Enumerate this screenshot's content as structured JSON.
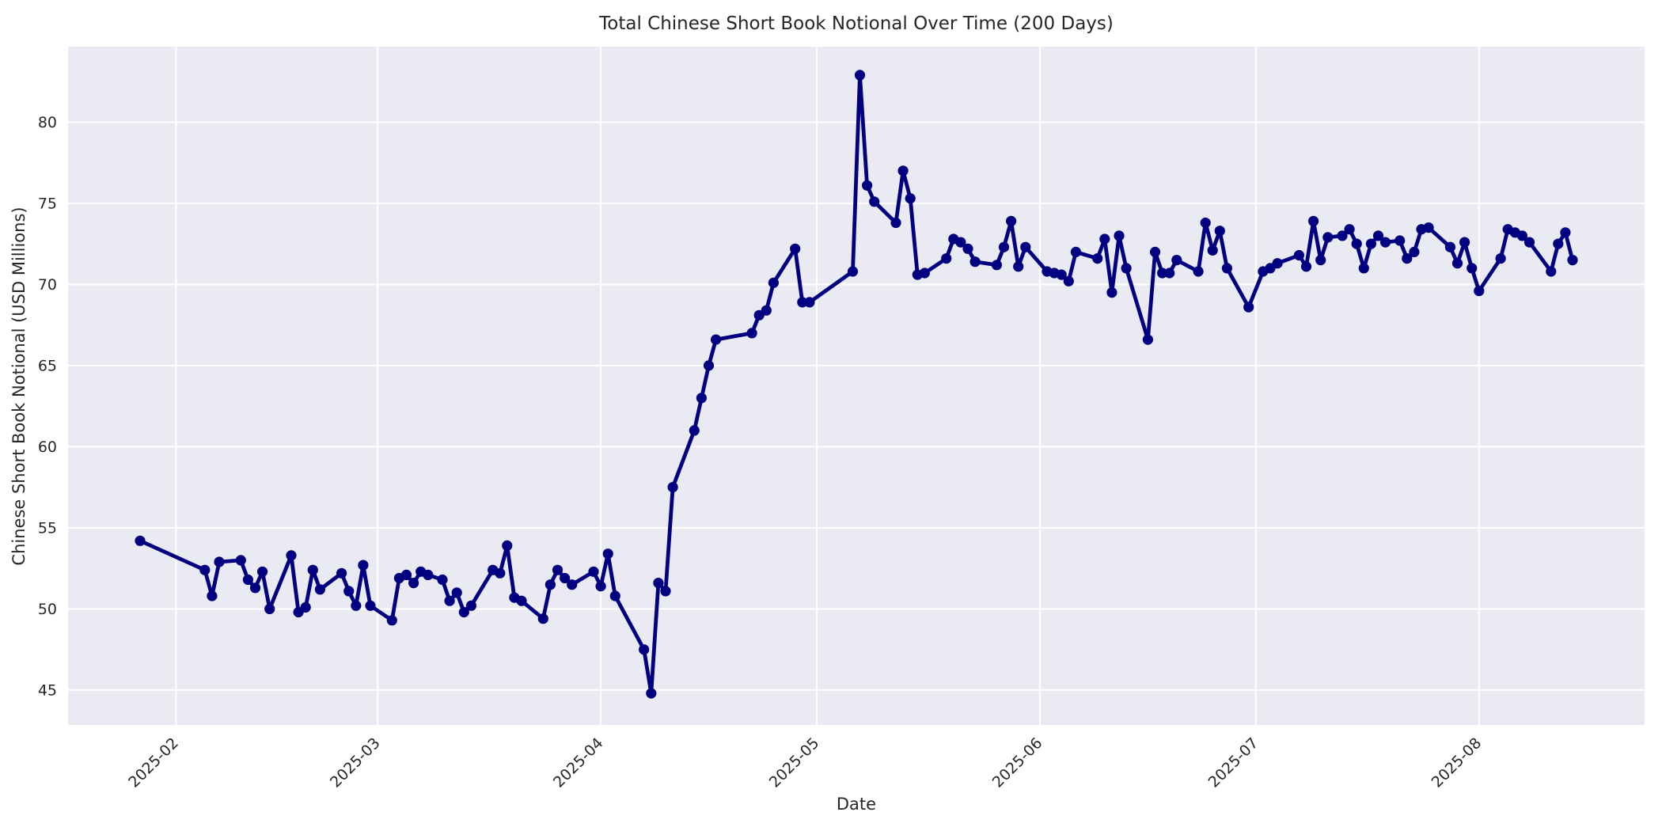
{
  "figure": {
    "title": "Total Chinese Short Book Notional Over Time (200 Days)",
    "xlabel": "Date",
    "ylabel": "Chinese Short Book Notional (USD Millions)"
  },
  "chart_data": {
    "type": "line",
    "title": "Total Chinese Short Book Notional Over Time (200 Days)",
    "xlabel": "Date",
    "ylabel": "Chinese Short Book Notional (USD Millions)",
    "grid": true,
    "legend": "none",
    "line_color": "#000080",
    "marker": "circle",
    "plot_bg": "#EAEAF2",
    "fig_bg": "#FFFFFF",
    "grid_color": "#FFFFFF",
    "text_color": "#262626",
    "xlim": [
      "2025-01-17",
      "2025-08-24"
    ],
    "ylim": [
      42.85,
      84.65
    ],
    "y_ticks": [
      45,
      50,
      55,
      60,
      65,
      70,
      75,
      80
    ],
    "x_ticks": [
      {
        "date": "2025-02-01",
        "label": "2025-02"
      },
      {
        "date": "2025-03-01",
        "label": "2025-03"
      },
      {
        "date": "2025-04-01",
        "label": "2025-04"
      },
      {
        "date": "2025-05-01",
        "label": "2025-05"
      },
      {
        "date": "2025-06-01",
        "label": "2025-06"
      },
      {
        "date": "2025-07-01",
        "label": "2025-07"
      },
      {
        "date": "2025-08-01",
        "label": "2025-08"
      }
    ],
    "series": [
      {
        "name": "Total Chinese Short Book Notional",
        "points": [
          [
            "2025-01-27",
            54.2
          ],
          [
            "2025-02-05",
            52.4
          ],
          [
            "2025-02-06",
            50.8
          ],
          [
            "2025-02-07",
            52.9
          ],
          [
            "2025-02-10",
            53.0
          ],
          [
            "2025-02-11",
            51.8
          ],
          [
            "2025-02-12",
            51.3
          ],
          [
            "2025-02-13",
            52.3
          ],
          [
            "2025-02-14",
            50.0
          ],
          [
            "2025-02-17",
            53.3
          ],
          [
            "2025-02-18",
            49.8
          ],
          [
            "2025-02-19",
            50.1
          ],
          [
            "2025-02-20",
            52.4
          ],
          [
            "2025-02-21",
            51.2
          ],
          [
            "2025-02-24",
            52.2
          ],
          [
            "2025-02-25",
            51.1
          ],
          [
            "2025-02-26",
            50.2
          ],
          [
            "2025-02-27",
            52.7
          ],
          [
            "2025-02-28",
            50.2
          ],
          [
            "2025-03-03",
            49.3
          ],
          [
            "2025-03-04",
            51.9
          ],
          [
            "2025-03-05",
            52.1
          ],
          [
            "2025-03-06",
            51.6
          ],
          [
            "2025-03-07",
            52.3
          ],
          [
            "2025-03-08",
            52.1
          ],
          [
            "2025-03-10",
            51.8
          ],
          [
            "2025-03-11",
            50.5
          ],
          [
            "2025-03-12",
            51.0
          ],
          [
            "2025-03-13",
            49.8
          ],
          [
            "2025-03-14",
            50.2
          ],
          [
            "2025-03-17",
            52.4
          ],
          [
            "2025-03-18",
            52.2
          ],
          [
            "2025-03-19",
            53.9
          ],
          [
            "2025-03-20",
            50.7
          ],
          [
            "2025-03-21",
            50.5
          ],
          [
            "2025-03-24",
            49.4
          ],
          [
            "2025-03-25",
            51.5
          ],
          [
            "2025-03-26",
            52.4
          ],
          [
            "2025-03-27",
            51.9
          ],
          [
            "2025-03-28",
            51.5
          ],
          [
            "2025-03-31",
            52.3
          ],
          [
            "2025-04-01",
            51.4
          ],
          [
            "2025-04-02",
            53.4
          ],
          [
            "2025-04-03",
            50.8
          ],
          [
            "2025-04-07",
            47.5
          ],
          [
            "2025-04-08",
            44.8
          ],
          [
            "2025-04-09",
            51.6
          ],
          [
            "2025-04-10",
            51.1
          ],
          [
            "2025-04-11",
            57.5
          ],
          [
            "2025-04-14",
            61.0
          ],
          [
            "2025-04-15",
            63.0
          ],
          [
            "2025-04-16",
            65.0
          ],
          [
            "2025-04-17",
            66.6
          ],
          [
            "2025-04-22",
            67.0
          ],
          [
            "2025-04-23",
            68.1
          ],
          [
            "2025-04-24",
            68.4
          ],
          [
            "2025-04-25",
            70.1
          ],
          [
            "2025-04-28",
            72.2
          ],
          [
            "2025-04-29",
            68.9
          ],
          [
            "2025-04-30",
            68.9
          ],
          [
            "2025-05-06",
            70.8
          ],
          [
            "2025-05-07",
            82.9
          ],
          [
            "2025-05-08",
            76.1
          ],
          [
            "2025-05-09",
            75.1
          ],
          [
            "2025-05-12",
            73.8
          ],
          [
            "2025-05-13",
            77.0
          ],
          [
            "2025-05-14",
            75.3
          ],
          [
            "2025-05-15",
            70.6
          ],
          [
            "2025-05-16",
            70.7
          ],
          [
            "2025-05-19",
            71.6
          ],
          [
            "2025-05-20",
            72.8
          ],
          [
            "2025-05-21",
            72.6
          ],
          [
            "2025-05-22",
            72.2
          ],
          [
            "2025-05-23",
            71.4
          ],
          [
            "2025-05-26",
            71.2
          ],
          [
            "2025-05-27",
            72.3
          ],
          [
            "2025-05-28",
            73.9
          ],
          [
            "2025-05-29",
            71.1
          ],
          [
            "2025-05-30",
            72.3
          ],
          [
            "2025-06-02",
            70.8
          ],
          [
            "2025-06-03",
            70.7
          ],
          [
            "2025-06-04",
            70.6
          ],
          [
            "2025-06-05",
            70.2
          ],
          [
            "2025-06-06",
            72.0
          ],
          [
            "2025-06-09",
            71.6
          ],
          [
            "2025-06-10",
            72.8
          ],
          [
            "2025-06-11",
            69.5
          ],
          [
            "2025-06-12",
            73.0
          ],
          [
            "2025-06-13",
            71.0
          ],
          [
            "2025-06-16",
            66.6
          ],
          [
            "2025-06-17",
            72.0
          ],
          [
            "2025-06-18",
            70.7
          ],
          [
            "2025-06-19",
            70.7
          ],
          [
            "2025-06-20",
            71.5
          ],
          [
            "2025-06-23",
            70.8
          ],
          [
            "2025-06-24",
            73.8
          ],
          [
            "2025-06-25",
            72.1
          ],
          [
            "2025-06-26",
            73.3
          ],
          [
            "2025-06-27",
            71.0
          ],
          [
            "2025-06-30",
            68.6
          ],
          [
            "2025-07-02",
            70.8
          ],
          [
            "2025-07-03",
            71.0
          ],
          [
            "2025-07-04",
            71.3
          ],
          [
            "2025-07-07",
            71.8
          ],
          [
            "2025-07-08",
            71.1
          ],
          [
            "2025-07-09",
            73.9
          ],
          [
            "2025-07-10",
            71.5
          ],
          [
            "2025-07-11",
            72.9
          ],
          [
            "2025-07-13",
            73.0
          ],
          [
            "2025-07-14",
            73.4
          ],
          [
            "2025-07-15",
            72.5
          ],
          [
            "2025-07-16",
            71.0
          ],
          [
            "2025-07-17",
            72.5
          ],
          [
            "2025-07-18",
            73.0
          ],
          [
            "2025-07-19",
            72.6
          ],
          [
            "2025-07-21",
            72.7
          ],
          [
            "2025-07-22",
            71.6
          ],
          [
            "2025-07-23",
            72.0
          ],
          [
            "2025-07-24",
            73.4
          ],
          [
            "2025-07-25",
            73.5
          ],
          [
            "2025-07-28",
            72.3
          ],
          [
            "2025-07-29",
            71.3
          ],
          [
            "2025-07-30",
            72.6
          ],
          [
            "2025-07-31",
            71.0
          ],
          [
            "2025-08-01",
            69.6
          ],
          [
            "2025-08-04",
            71.6
          ],
          [
            "2025-08-05",
            73.4
          ],
          [
            "2025-08-06",
            73.2
          ],
          [
            "2025-08-07",
            73.0
          ],
          [
            "2025-08-08",
            72.6
          ],
          [
            "2025-08-11",
            70.8
          ],
          [
            "2025-08-12",
            72.5
          ],
          [
            "2025-08-13",
            73.2
          ],
          [
            "2025-08-14",
            71.5
          ]
        ]
      }
    ]
  }
}
